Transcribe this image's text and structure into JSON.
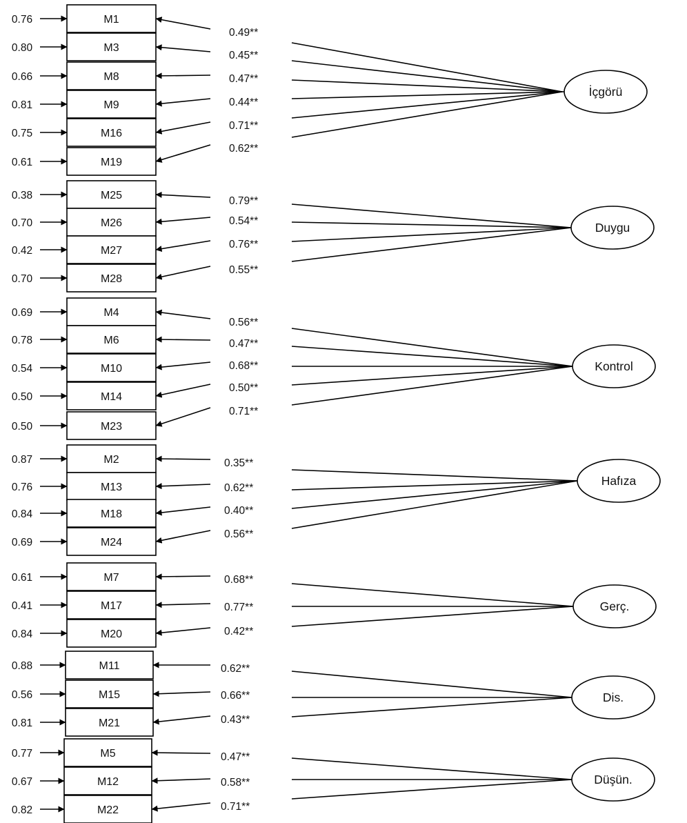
{
  "factors": [
    {
      "name": "İçgörü",
      "items": [
        {
          "id": "M1",
          "error": "0.76",
          "loading": "0.49**"
        },
        {
          "id": "M3",
          "error": "0.80",
          "loading": "0.45**"
        },
        {
          "id": "M8",
          "error": "0.66",
          "loading": "0.47**"
        },
        {
          "id": "M9",
          "error": "0.81",
          "loading": "0.44**"
        },
        {
          "id": "M16",
          "error": "0.75",
          "loading": "0.71**"
        },
        {
          "id": "M19",
          "error": "0.61",
          "loading": "0.62**"
        }
      ]
    },
    {
      "name": "Duygu",
      "items": [
        {
          "id": "M25",
          "error": "0.38",
          "loading": "0.79**"
        },
        {
          "id": "M26",
          "error": "0.70",
          "loading": "0.54**"
        },
        {
          "id": "M27",
          "error": "0.42",
          "loading": "0.76**"
        },
        {
          "id": "M28",
          "error": "0.70",
          "loading": "0.55**"
        }
      ]
    },
    {
      "name": "Kontrol",
      "items": [
        {
          "id": "M4",
          "error": "0.69",
          "loading": "0.56**"
        },
        {
          "id": "M6",
          "error": "0.78",
          "loading": "0.47**"
        },
        {
          "id": "M10",
          "error": "0.54",
          "loading": "0.68**"
        },
        {
          "id": "M14",
          "error": "0.50",
          "loading": "0.50**"
        },
        {
          "id": "M23",
          "error": "0.50",
          "loading": "0.71**"
        }
      ]
    },
    {
      "name": "Hafıza",
      "items": [
        {
          "id": "M2",
          "error": "0.87",
          "loading": "0.35**"
        },
        {
          "id": "M13",
          "error": "0.76",
          "loading": "0.62**"
        },
        {
          "id": "M18",
          "error": "0.84",
          "loading": "0.40**"
        },
        {
          "id": "M24",
          "error": "0.69",
          "loading": "0.56**"
        }
      ]
    },
    {
      "name": "Gerç.",
      "items": [
        {
          "id": "M7",
          "error": "0.61",
          "loading": "0.68**"
        },
        {
          "id": "M17",
          "error": "0.41",
          "loading": "0.77**"
        },
        {
          "id": "M20",
          "error": "0.84",
          "loading": "0.42**"
        }
      ]
    },
    {
      "name": "Dis.",
      "items": [
        {
          "id": "M11",
          "error": "0.88",
          "loading": "0.62**"
        },
        {
          "id": "M15",
          "error": "0.56",
          "loading": "0.66**"
        },
        {
          "id": "M21",
          "error": "0.81",
          "loading": "0.43**"
        }
      ]
    },
    {
      "name": "Düşün.",
      "items": [
        {
          "id": "M5",
          "error": "0.77",
          "loading": "0.47**"
        },
        {
          "id": "M12",
          "error": "0.67",
          "loading": "0.58**"
        },
        {
          "id": "M22",
          "error": "0.82",
          "loading": "0.71**"
        }
      ]
    }
  ]
}
